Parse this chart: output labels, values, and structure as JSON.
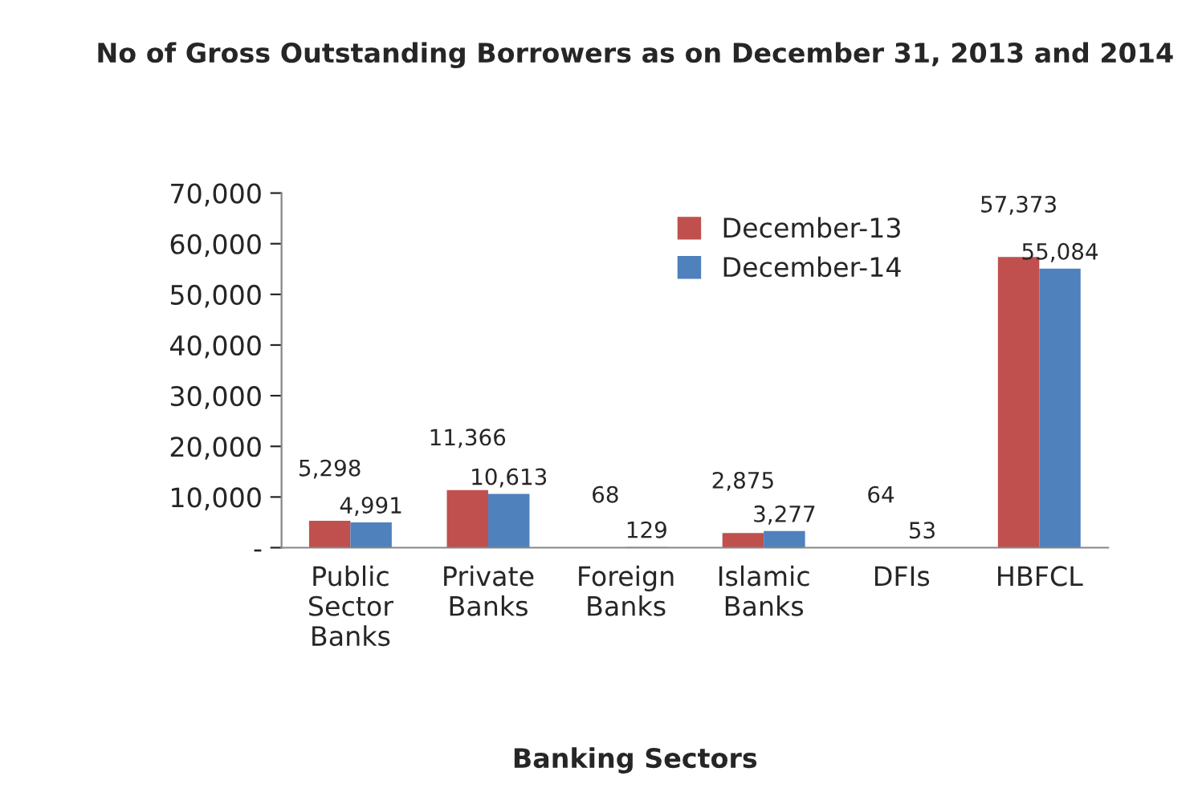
{
  "chart_data": {
    "type": "bar",
    "title": "No of Gross Outstanding Borrowers as on December 31, 2013 and 2014",
    "xlabel": "Banking Sectors",
    "categories": [
      "Public Sector Banks",
      "Private Banks",
      "Foreign Banks",
      "Islamic Banks",
      "DFIs",
      "HBFCL"
    ],
    "series": [
      {
        "name": "December-13",
        "color": "#c0504d",
        "values": [
          5298,
          11366,
          68,
          2875,
          64,
          57373
        ],
        "value_labels": [
          "5,298",
          "11,366",
          "68",
          "2,875",
          "64",
          "57,373"
        ]
      },
      {
        "name": "December-14",
        "color": "#4f81bd",
        "values": [
          4991,
          10613,
          129,
          3277,
          53,
          55084
        ],
        "value_labels": [
          "4,991",
          "10,613",
          "129",
          "3,277",
          "53",
          "55,084"
        ]
      }
    ],
    "ylim": [
      0,
      70000
    ],
    "yticks": [
      {
        "value": 0,
        "label": "-"
      },
      {
        "value": 10000,
        "label": "10,000"
      },
      {
        "value": 20000,
        "label": "20,000"
      },
      {
        "value": 30000,
        "label": "30,000"
      },
      {
        "value": 40000,
        "label": "40,000"
      },
      {
        "value": 50000,
        "label": "50,000"
      },
      {
        "value": 60000,
        "label": "60,000"
      },
      {
        "value": 70000,
        "label": "70,000"
      }
    ],
    "grid": false,
    "legend": "top right"
  }
}
